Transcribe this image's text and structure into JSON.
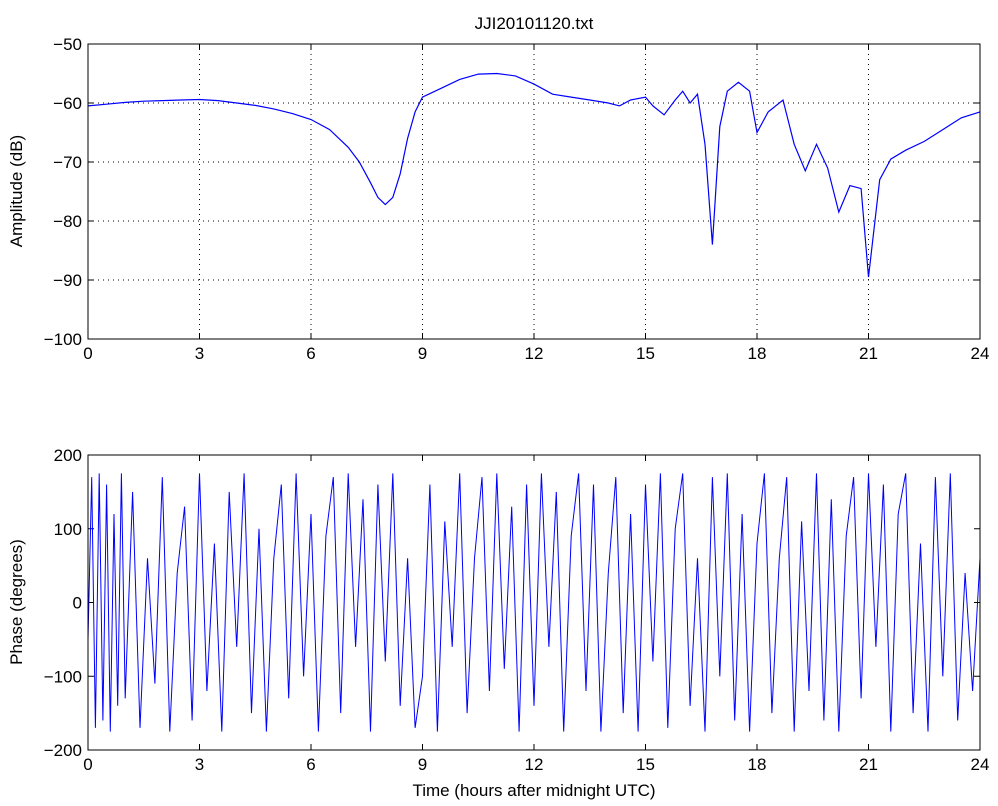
{
  "figure": {
    "title": "JJI20101120.txt"
  },
  "chart_data": [
    {
      "type": "line",
      "title": "JJI20101120.txt",
      "xlabel": "",
      "ylabel": "Amplitude (dB)",
      "xlim": [
        0,
        24
      ],
      "ylim": [
        -100,
        -50
      ],
      "xticks": [
        0,
        3,
        6,
        9,
        12,
        15,
        18,
        21,
        24
      ],
      "yticks": [
        -50,
        -60,
        -70,
        -80,
        -90,
        -100
      ],
      "xtick_labels": [
        "0",
        "3",
        "6",
        "9",
        "12",
        "15",
        "18",
        "21",
        "24"
      ],
      "ytick_labels": [
        "−50",
        "−60",
        "−70",
        "−80",
        "−90",
        "−100"
      ],
      "grid": true,
      "color": "#0000ff",
      "series": [
        {
          "x": [
            0,
            0.5,
            1,
            1.5,
            2,
            2.5,
            3,
            3.5,
            4,
            4.5,
            5,
            5.5,
            6,
            6.5,
            7,
            7.3,
            7.6,
            7.8,
            8.0,
            8.2,
            8.4,
            8.6,
            8.8,
            9.0,
            9.5,
            10,
            10.5,
            11,
            11.5,
            12,
            12.5,
            13,
            13.5,
            14,
            14.3,
            14.6,
            15,
            15.2,
            15.5,
            15.8,
            16.0,
            16.2,
            16.4,
            16.6,
            16.8,
            17.0,
            17.2,
            17.5,
            17.8,
            18.0,
            18.3,
            18.7,
            19.0,
            19.3,
            19.6,
            19.9,
            20.2,
            20.5,
            20.8,
            21.0,
            21.3,
            21.6,
            22,
            22.5,
            23,
            23.5,
            24
          ],
          "y": [
            -60.5,
            -60.2,
            -59.9,
            -59.7,
            -59.6,
            -59.5,
            -59.4,
            -59.6,
            -60.0,
            -60.4,
            -61.0,
            -61.8,
            -62.8,
            -64.5,
            -67.5,
            -70.0,
            -73.5,
            -76.0,
            -77.2,
            -76.0,
            -72.0,
            -66.0,
            -61.5,
            -59.0,
            -57.5,
            -56.0,
            -55.1,
            -55.0,
            -55.4,
            -56.8,
            -58.5,
            -59.0,
            -59.5,
            -60.0,
            -60.5,
            -59.5,
            -59.0,
            -60.5,
            -62.0,
            -59.5,
            -58.0,
            -60.0,
            -58.5,
            -67.0,
            -84.0,
            -64.0,
            -58.0,
            -56.5,
            -58.0,
            -65.0,
            -61.5,
            -59.5,
            -67.0,
            -71.5,
            -67.0,
            -71.0,
            -78.5,
            -74.0,
            -74.5,
            -89.5,
            -73.0,
            -69.5,
            -68.0,
            -66.5,
            -64.5,
            -62.5,
            -61.5
          ]
        }
      ]
    },
    {
      "type": "line",
      "title": "",
      "xlabel": "Time (hours after midnight UTC)",
      "ylabel": "Phase (degrees)",
      "xlim": [
        0,
        24
      ],
      "ylim": [
        -200,
        200
      ],
      "xticks": [
        0,
        3,
        6,
        9,
        12,
        15,
        18,
        21,
        24
      ],
      "yticks": [
        200,
        100,
        0,
        -100,
        -200
      ],
      "xtick_labels": [
        "0",
        "3",
        "6",
        "9",
        "12",
        "15",
        "18",
        "21",
        "24"
      ],
      "ytick_labels": [
        "200",
        "100",
        "0",
        "−100",
        "−200"
      ],
      "grid": false,
      "color": "#0000ff",
      "series": [
        {
          "x": [
            0,
            0.1,
            0.2,
            0.3,
            0.4,
            0.5,
            0.6,
            0.7,
            0.8,
            0.9,
            1.0,
            1.2,
            1.4,
            1.6,
            1.8,
            2.0,
            2.2,
            2.4,
            2.6,
            2.8,
            3.0,
            3.2,
            3.4,
            3.6,
            3.8,
            4.0,
            4.2,
            4.4,
            4.6,
            4.8,
            5.0,
            5.2,
            5.4,
            5.6,
            5.8,
            6.0,
            6.2,
            6.4,
            6.6,
            6.8,
            7.0,
            7.2,
            7.4,
            7.6,
            7.8,
            8.0,
            8.2,
            8.4,
            8.6,
            8.8,
            9.0,
            9.2,
            9.4,
            9.6,
            9.8,
            10.0,
            10.2,
            10.4,
            10.6,
            10.8,
            11.0,
            11.2,
            11.4,
            11.6,
            11.8,
            12.0,
            12.2,
            12.4,
            12.6,
            12.8,
            13.0,
            13.2,
            13.4,
            13.6,
            13.8,
            14.0,
            14.2,
            14.4,
            14.6,
            14.8,
            15.0,
            15.2,
            15.4,
            15.6,
            15.8,
            16.0,
            16.2,
            16.4,
            16.6,
            16.8,
            17.0,
            17.2,
            17.4,
            17.6,
            17.8,
            18.0,
            18.2,
            18.4,
            18.6,
            18.8,
            19.0,
            19.2,
            19.4,
            19.6,
            19.8,
            20.0,
            20.2,
            20.4,
            20.6,
            20.8,
            21.0,
            21.2,
            21.4,
            21.6,
            21.8,
            22.0,
            22.2,
            22.4,
            22.6,
            22.8,
            23.0,
            23.2,
            23.4,
            23.6,
            23.8,
            24.0
          ],
          "y": [
            -50,
            170,
            -170,
            175,
            -160,
            160,
            -175,
            120,
            -140,
            175,
            -130,
            150,
            -170,
            60,
            -110,
            170,
            -175,
            40,
            130,
            -160,
            175,
            -120,
            80,
            -175,
            150,
            -60,
            175,
            -150,
            100,
            -175,
            60,
            160,
            -130,
            175,
            -100,
            120,
            -175,
            90,
            170,
            -150,
            175,
            -60,
            140,
            -175,
            160,
            -80,
            175,
            -140,
            60,
            -170,
            -100,
            160,
            -175,
            110,
            -60,
            175,
            -150,
            60,
            170,
            -120,
            175,
            -90,
            130,
            -175,
            160,
            -140,
            175,
            -60,
            150,
            -175,
            90,
            175,
            -120,
            160,
            -175,
            40,
            170,
            -150,
            120,
            -175,
            160,
            -80,
            175,
            -170,
            100,
            175,
            -140,
            60,
            -175,
            170,
            -100,
            175,
            -160,
            120,
            -175,
            80,
            175,
            -150,
            60,
            170,
            -175,
            110,
            -120,
            175,
            -160,
            140,
            -175,
            90,
            170,
            -130,
            175,
            -60,
            160,
            -175,
            120,
            175,
            -150,
            80,
            -175,
            170,
            -100,
            175,
            -160,
            40,
            -120,
            60
          ]
        }
      ]
    }
  ]
}
